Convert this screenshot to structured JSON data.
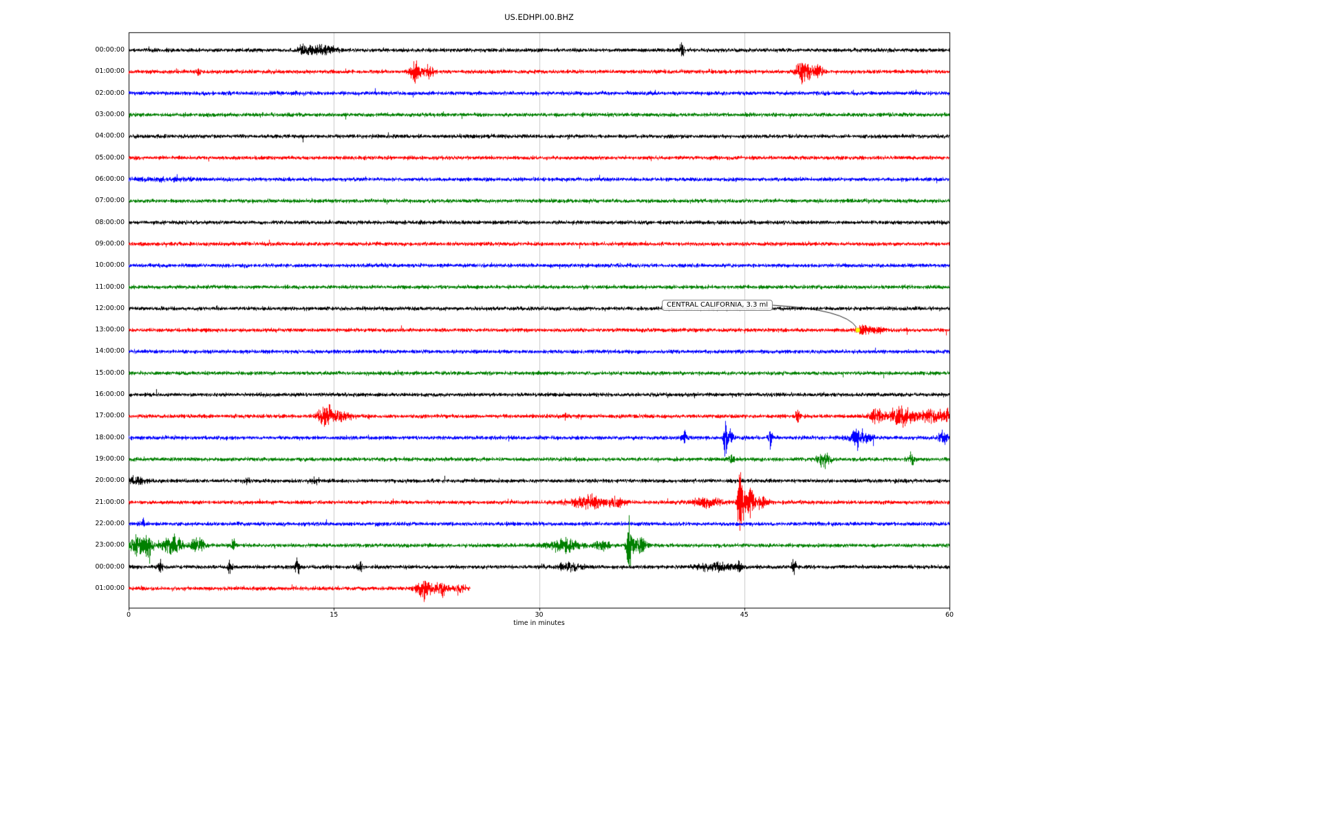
{
  "chart_data": {
    "type": "line",
    "subtype": "helicorder-dayplot",
    "title": "US.EDHPI.00.BHZ",
    "xlabel": "time in minutes",
    "x_range": [
      0,
      60
    ],
    "x_ticks": [
      "0",
      "15",
      "30",
      "45",
      "60"
    ],
    "grid": {
      "vertical_lines_min": [
        15,
        30,
        45
      ],
      "color": "#c8c8c8"
    },
    "row_colors_cycle": [
      "#000000",
      "#ff0000",
      "#0000ff",
      "#008000"
    ],
    "annotation": {
      "text": "CENTRAL CALIFORNIA, 3.3 ml",
      "row_index": 13,
      "t_min": 53.3,
      "marker_color": "#ffff00"
    },
    "rows": [
      {
        "label": "00:00:00",
        "color": "#000000",
        "duration_min": 60,
        "events": [
          {
            "t": 12.7,
            "d": 0.3,
            "a": 2.5
          },
          {
            "t": 13.8,
            "d": 2.0,
            "a": 2.0
          },
          {
            "t": 40.4,
            "d": 0.3,
            "a": 3.5
          }
        ]
      },
      {
        "label": "01:00:00",
        "color": "#ff0000",
        "duration_min": 60,
        "events": [
          {
            "t": 5.1,
            "d": 0.2,
            "a": 2.5
          },
          {
            "t": 21.0,
            "d": 0.7,
            "a": 4.5
          },
          {
            "t": 21.9,
            "d": 0.5,
            "a": 3.0
          },
          {
            "t": 49.3,
            "d": 0.8,
            "a": 6.0
          },
          {
            "t": 50.4,
            "d": 0.6,
            "a": 3.5
          }
        ]
      },
      {
        "label": "02:00:00",
        "color": "#0000ff",
        "duration_min": 60,
        "events": []
      },
      {
        "label": "03:00:00",
        "color": "#008000",
        "duration_min": 60,
        "events": []
      },
      {
        "label": "04:00:00",
        "color": "#000000",
        "duration_min": 60,
        "events": []
      },
      {
        "label": "05:00:00",
        "color": "#ff0000",
        "duration_min": 60,
        "events": []
      },
      {
        "label": "06:00:00",
        "color": "#0000ff",
        "duration_min": 60,
        "events": [
          {
            "t": 2.0,
            "d": 4.0,
            "a": 0.5
          }
        ]
      },
      {
        "label": "07:00:00",
        "color": "#008000",
        "duration_min": 60,
        "events": []
      },
      {
        "label": "08:00:00",
        "color": "#000000",
        "duration_min": 60,
        "events": []
      },
      {
        "label": "09:00:00",
        "color": "#ff0000",
        "duration_min": 60,
        "events": []
      },
      {
        "label": "10:00:00",
        "color": "#0000ff",
        "duration_min": 60,
        "events": []
      },
      {
        "label": "11:00:00",
        "color": "#008000",
        "duration_min": 60,
        "events": []
      },
      {
        "label": "12:00:00",
        "color": "#000000",
        "duration_min": 60,
        "events": []
      },
      {
        "label": "13:00:00",
        "color": "#ff0000",
        "duration_min": 60,
        "events": [
          {
            "t": 53.6,
            "d": 0.4,
            "a": 2.0
          },
          {
            "t": 54.3,
            "d": 1.5,
            "a": 1.5
          }
        ]
      },
      {
        "label": "14:00:00",
        "color": "#0000ff",
        "duration_min": 60,
        "events": []
      },
      {
        "label": "15:00:00",
        "color": "#008000",
        "duration_min": 60,
        "events": []
      },
      {
        "label": "16:00:00",
        "color": "#000000",
        "duration_min": 60,
        "events": []
      },
      {
        "label": "17:00:00",
        "color": "#ff0000",
        "duration_min": 60,
        "events": [
          {
            "t": 14.3,
            "d": 0.8,
            "a": 5.0
          },
          {
            "t": 15.3,
            "d": 1.5,
            "a": 2.0
          },
          {
            "t": 31.9,
            "d": 0.2,
            "a": 2.5
          },
          {
            "t": 48.9,
            "d": 0.3,
            "a": 4.0
          },
          {
            "t": 54.6,
            "d": 0.8,
            "a": 3.5
          },
          {
            "t": 56.6,
            "d": 1.6,
            "a": 4.5
          },
          {
            "t": 58.7,
            "d": 1.2,
            "a": 3.5
          },
          {
            "t": 59.8,
            "d": 0.5,
            "a": 3.0
          }
        ]
      },
      {
        "label": "18:00:00",
        "color": "#0000ff",
        "duration_min": 60,
        "events": [
          {
            "t": 40.6,
            "d": 0.3,
            "a": 2.5
          },
          {
            "t": 43.6,
            "d": 0.25,
            "a": 11.0
          },
          {
            "t": 44.0,
            "d": 0.3,
            "a": 4.0
          },
          {
            "t": 46.9,
            "d": 0.25,
            "a": 6.0
          },
          {
            "t": 53.4,
            "d": 1.2,
            "a": 4.0
          },
          {
            "t": 59.6,
            "d": 0.8,
            "a": 2.5
          }
        ]
      },
      {
        "label": "19:00:00",
        "color": "#008000",
        "duration_min": 60,
        "events": [
          {
            "t": 44.0,
            "d": 0.5,
            "a": 1.5
          },
          {
            "t": 50.8,
            "d": 0.7,
            "a": 3.5
          },
          {
            "t": 57.2,
            "d": 0.4,
            "a": 2.5
          }
        ]
      },
      {
        "label": "20:00:00",
        "color": "#000000",
        "duration_min": 60,
        "events": [
          {
            "t": 0.5,
            "d": 1.2,
            "a": 1.5
          },
          {
            "t": 8.6,
            "d": 0.4,
            "a": 1.5
          },
          {
            "t": 13.6,
            "d": 0.4,
            "a": 1.5
          }
        ]
      },
      {
        "label": "21:00:00",
        "color": "#ff0000",
        "duration_min": 60,
        "events": [
          {
            "t": 33.6,
            "d": 2.4,
            "a": 2.8
          },
          {
            "t": 35.7,
            "d": 0.8,
            "a": 2.2
          },
          {
            "t": 42.3,
            "d": 1.6,
            "a": 2.4
          },
          {
            "t": 44.7,
            "d": 0.35,
            "a": 20.0
          },
          {
            "t": 45.3,
            "d": 0.6,
            "a": 7.0
          },
          {
            "t": 46.2,
            "d": 0.8,
            "a": 2.5
          }
        ]
      },
      {
        "label": "22:00:00",
        "color": "#0000ff",
        "duration_min": 60,
        "events": [
          {
            "t": 1.0,
            "d": 0.3,
            "a": 2.2
          }
        ]
      },
      {
        "label": "23:00:00",
        "color": "#008000",
        "duration_min": 60,
        "events": [
          {
            "t": 0.6,
            "d": 0.8,
            "a": 5.0
          },
          {
            "t": 1.4,
            "d": 0.5,
            "a": 6.0
          },
          {
            "t": 3.1,
            "d": 1.2,
            "a": 5.0
          },
          {
            "t": 5.0,
            "d": 0.8,
            "a": 3.5
          },
          {
            "t": 7.6,
            "d": 0.3,
            "a": 2.8
          },
          {
            "t": 31.8,
            "d": 1.8,
            "a": 3.0
          },
          {
            "t": 34.6,
            "d": 0.8,
            "a": 2.6
          },
          {
            "t": 36.6,
            "d": 0.35,
            "a": 14.0
          },
          {
            "t": 37.3,
            "d": 0.8,
            "a": 4.0
          }
        ]
      },
      {
        "label": "00:00:00",
        "color": "#000000",
        "duration_min": 60,
        "events": [
          {
            "t": 2.3,
            "d": 0.25,
            "a": 3.0
          },
          {
            "t": 7.4,
            "d": 0.25,
            "a": 3.5
          },
          {
            "t": 12.3,
            "d": 0.3,
            "a": 4.0
          },
          {
            "t": 16.9,
            "d": 0.3,
            "a": 2.5
          },
          {
            "t": 32.2,
            "d": 1.2,
            "a": 2.0
          },
          {
            "t": 42.8,
            "d": 2.2,
            "a": 2.0
          },
          {
            "t": 44.6,
            "d": 0.3,
            "a": 3.0
          },
          {
            "t": 48.6,
            "d": 0.25,
            "a": 5.0
          }
        ]
      },
      {
        "label": "01:00:00",
        "color": "#ff0000",
        "duration_min": 25,
        "events": [
          {
            "t": 21.6,
            "d": 1.0,
            "a": 4.0
          },
          {
            "t": 22.9,
            "d": 0.8,
            "a": 3.2
          },
          {
            "t": 24.2,
            "d": 0.6,
            "a": 2.2
          }
        ]
      }
    ]
  }
}
